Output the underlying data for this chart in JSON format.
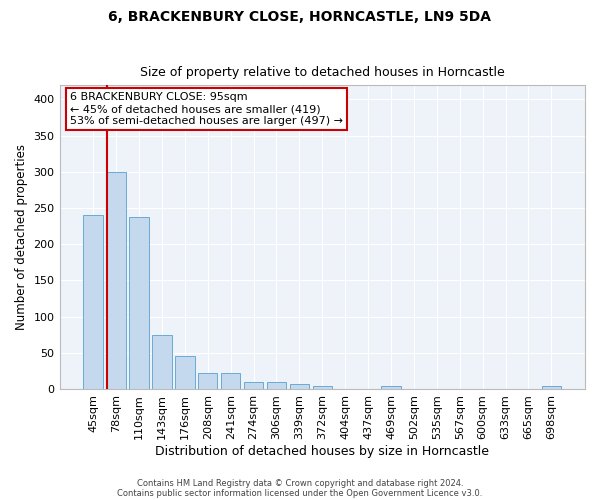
{
  "title": "6, BRACKENBURY CLOSE, HORNCASTLE, LN9 5DA",
  "subtitle": "Size of property relative to detached houses in Horncastle",
  "xlabel": "Distribution of detached houses by size in Horncastle",
  "ylabel": "Number of detached properties",
  "bar_color": "#c5d9ee",
  "bar_edge_color": "#6aaad4",
  "background_color": "#eef2f9",
  "grid_color": "#ffffff",
  "categories": [
    "45sqm",
    "78sqm",
    "110sqm",
    "143sqm",
    "176sqm",
    "208sqm",
    "241sqm",
    "274sqm",
    "306sqm",
    "339sqm",
    "372sqm",
    "404sqm",
    "437sqm",
    "469sqm",
    "502sqm",
    "535sqm",
    "567sqm",
    "600sqm",
    "633sqm",
    "665sqm",
    "698sqm"
  ],
  "values": [
    240,
    300,
    238,
    75,
    45,
    22,
    22,
    10,
    10,
    7,
    4,
    0,
    0,
    4,
    0,
    0,
    0,
    0,
    0,
    0,
    4
  ],
  "red_line_x": 0.6,
  "ylim": [
    0,
    420
  ],
  "yticks": [
    0,
    50,
    100,
    150,
    200,
    250,
    300,
    350,
    400
  ],
  "annotation_text": "6 BRACKENBURY CLOSE: 95sqm\n← 45% of detached houses are smaller (419)\n53% of semi-detached houses are larger (497) →",
  "footer_line1": "Contains HM Land Registry data © Crown copyright and database right 2024.",
  "footer_line2": "Contains public sector information licensed under the Open Government Licence v3.0."
}
